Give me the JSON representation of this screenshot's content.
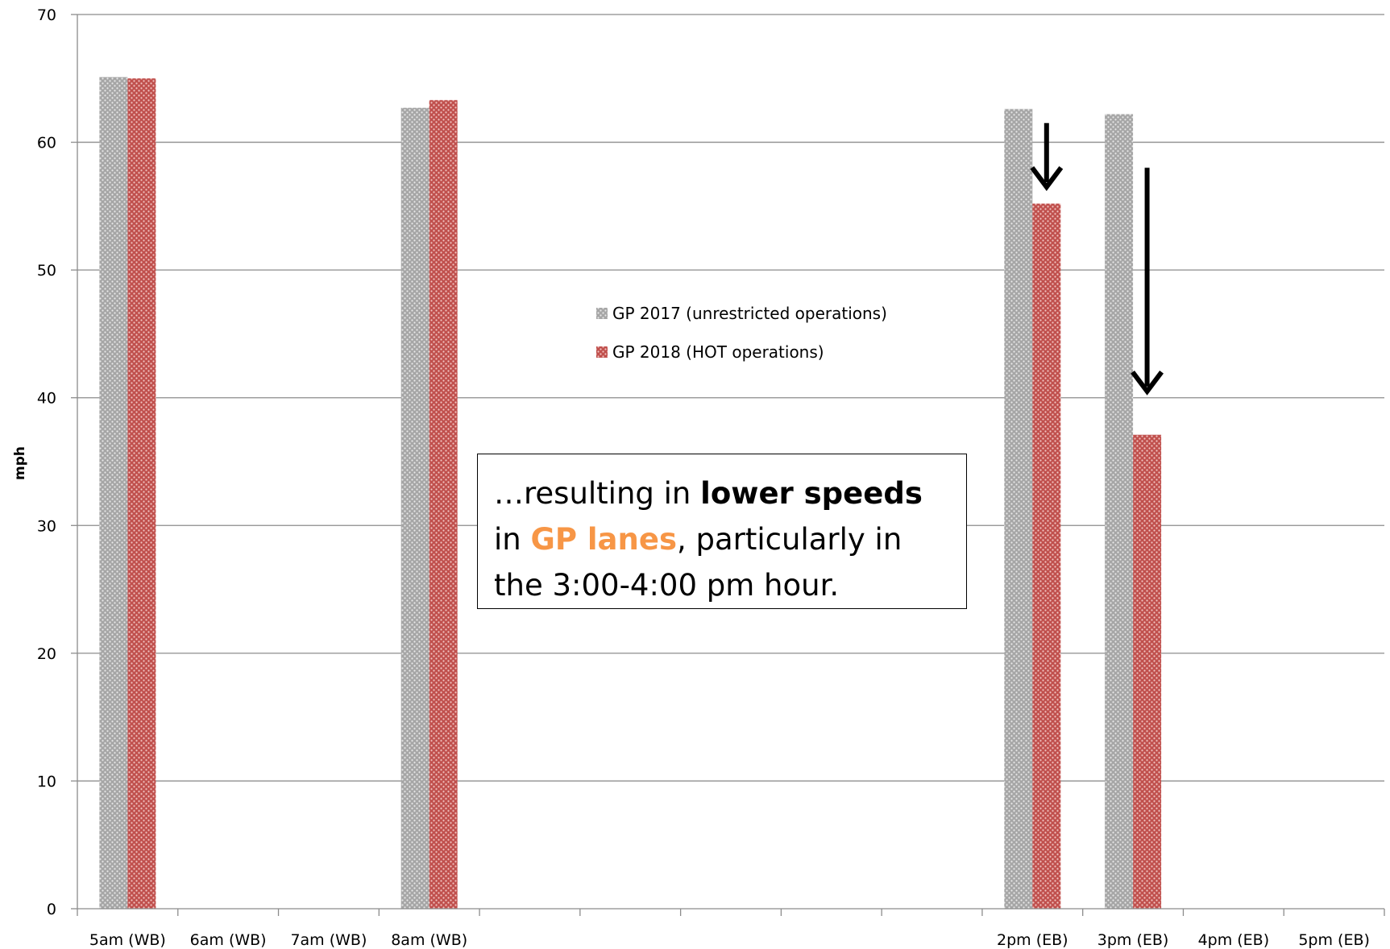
{
  "chart_data": {
    "type": "bar",
    "categories": [
      "5am (WB)",
      "6am (WB)",
      "7am (WB)",
      "8am (WB)",
      "",
      "",
      "",
      "",
      "",
      "2pm (EB)",
      "3pm (EB)",
      "4pm (EB)",
      "5pm (EB)"
    ],
    "series": [
      {
        "name": "GP 2017 (unrestricted operations)",
        "color": "#a6a6a6",
        "values": [
          65.1,
          null,
          null,
          62.7,
          null,
          null,
          null,
          null,
          null,
          62.6,
          62.2,
          null,
          null
        ]
      },
      {
        "name": "GP 2018 (HOT operations)",
        "color": "#c0504d",
        "values": [
          65.0,
          null,
          null,
          63.3,
          null,
          null,
          null,
          null,
          null,
          55.2,
          37.1,
          null,
          null
        ]
      }
    ],
    "title": "",
    "xlabel": "",
    "ylabel": "mph",
    "ylim": [
      0,
      70
    ],
    "yticks": [
      0,
      10,
      20,
      30,
      40,
      50,
      60,
      70
    ],
    "grid": true,
    "legend_position": "center",
    "annotations": {
      "callout_part1": "…resulting in ",
      "callout_bold": "lower speeds",
      "callout_part2": " in ",
      "callout_highlight": "GP lanes",
      "callout_part3": ", particularly in the 3:00-4:00 pm hour."
    },
    "arrows": [
      {
        "category": "2pm (EB)",
        "from": 61.5,
        "to": 56.5
      },
      {
        "category": "3pm (EB)",
        "from": 58.0,
        "to": 40.5
      }
    ]
  }
}
